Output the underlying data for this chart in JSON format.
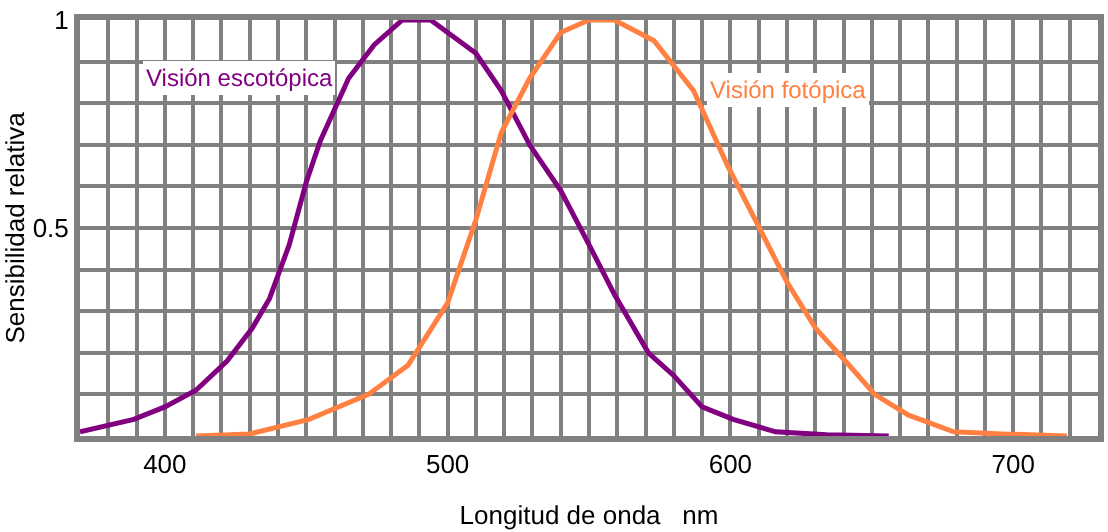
{
  "chart_data": {
    "type": "line",
    "xlabel": "Longitud de onda   nm",
    "ylabel": "Sensibilidad relativa",
    "xlim": [
      370,
      730
    ],
    "ylim": [
      0,
      1
    ],
    "xticks": [
      {
        "value": 380,
        "label": null
      },
      {
        "value": 390,
        "label": null
      },
      400,
      {
        "value": 410,
        "label": null
      },
      {
        "value": 420,
        "label": null
      },
      {
        "value": 430,
        "label": null
      },
      {
        "value": 440,
        "label": null
      },
      {
        "value": 450,
        "label": null
      },
      {
        "value": 460,
        "label": null
      },
      {
        "value": 470,
        "label": null
      },
      {
        "value": 480,
        "label": null
      },
      {
        "value": 490,
        "label": null
      },
      500,
      {
        "value": 510,
        "label": null
      },
      {
        "value": 520,
        "label": null
      },
      {
        "value": 530,
        "label": null
      },
      {
        "value": 540,
        "label": null
      },
      {
        "value": 550,
        "label": null
      },
      {
        "value": 560,
        "label": null
      },
      {
        "value": 570,
        "label": null
      },
      {
        "value": 580,
        "label": null
      },
      {
        "value": 590,
        "label": null
      },
      600,
      {
        "value": 610,
        "label": null
      },
      {
        "value": 620,
        "label": null
      },
      {
        "value": 630,
        "label": null
      },
      {
        "value": 640,
        "label": null
      },
      {
        "value": 650,
        "label": null
      },
      {
        "value": 660,
        "label": null
      },
      {
        "value": 670,
        "label": null
      },
      {
        "value": 680,
        "label": null
      },
      {
        "value": 690,
        "label": null
      },
      700,
      {
        "value": 710,
        "label": null
      },
      {
        "value": 720,
        "label": null
      }
    ],
    "yticks": [
      {
        "value": 0.1,
        "label": null
      },
      {
        "value": 0.2,
        "label": null
      },
      {
        "value": 0.3,
        "label": null
      },
      {
        "value": 0.4,
        "label": null
      },
      0.5,
      {
        "value": 0.6,
        "label": null
      },
      {
        "value": 0.7,
        "label": null
      },
      {
        "value": 0.8,
        "label": null
      },
      {
        "value": 0.9,
        "label": null
      },
      1
    ],
    "grid": true,
    "marker": "none",
    "line_style": "solid",
    "series": [
      {
        "name": "Visión escotópica",
        "color": "#800080",
        "x": [
          370,
          389,
          400,
          411,
          422,
          431,
          437,
          444,
          450,
          455,
          465,
          474,
          484,
          494,
          510,
          519,
          529,
          540,
          550,
          559,
          571,
          580,
          590,
          601,
          616,
          634,
          656
        ],
        "values": [
          0.01,
          0.04,
          0.07,
          0.11,
          0.18,
          0.26,
          0.33,
          0.46,
          0.61,
          0.71,
          0.86,
          0.94,
          1.0,
          1.0,
          0.92,
          0.83,
          0.7,
          0.59,
          0.46,
          0.34,
          0.2,
          0.145,
          0.07,
          0.04,
          0.01,
          0.003,
          0.0
        ]
      },
      {
        "name": "Visión fotópica",
        "color": "#ff8040",
        "x": [
          411,
          430,
          451,
          472,
          486,
          500,
          510,
          519,
          529,
          540,
          550,
          559,
          573,
          587,
          599,
          611,
          620,
          630,
          642,
          651,
          663,
          679,
          696,
          719
        ],
        "values": [
          0.0,
          0.005,
          0.04,
          0.1,
          0.17,
          0.32,
          0.52,
          0.73,
          0.86,
          0.97,
          1.0,
          1.0,
          0.95,
          0.83,
          0.65,
          0.49,
          0.37,
          0.26,
          0.17,
          0.1,
          0.05,
          0.01,
          0.005,
          0.0
        ]
      }
    ],
    "legend": false
  }
}
